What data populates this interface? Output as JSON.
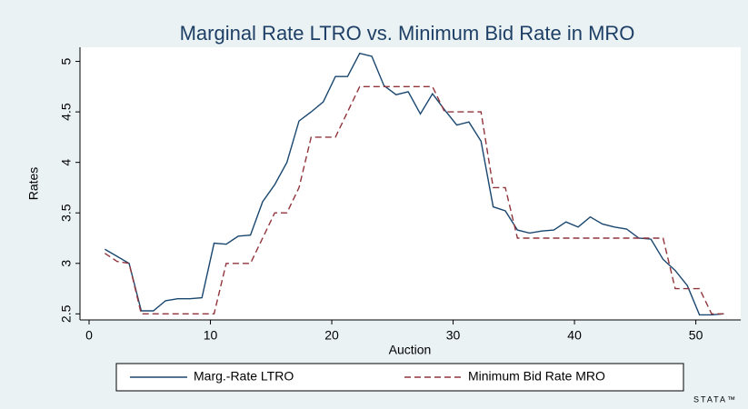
{
  "chart_data": {
    "type": "line",
    "title": "Marginal Rate LTRO vs. Minimum Bid Rate in MRO",
    "x_label": "Auction",
    "y_label": "Rates",
    "logo": "STATA™",
    "x": [
      1.3,
      2.3,
      3.3,
      4.3,
      5.3,
      6.3,
      7.3,
      8.3,
      9.3,
      10.3,
      11.3,
      12.3,
      13.3,
      14.3,
      15.3,
      16.3,
      17.3,
      18.3,
      19.3,
      20.3,
      21.3,
      22.3,
      23.3,
      24.3,
      25.3,
      26.3,
      27.3,
      28.3,
      29.3,
      30.3,
      31.3,
      32.3,
      33.3,
      34.3,
      35.3,
      36.3,
      37.3,
      38.3,
      39.3,
      40.3,
      41.3,
      42.3,
      43.3,
      44.3,
      45.3,
      46.3,
      47.3,
      48.3,
      49.3,
      50.3,
      51.3,
      52.3
    ],
    "series": [
      {
        "name": "Marg.-Rate LTRO",
        "color": "#1a476f",
        "dash": "solid",
        "values": [
          3.14,
          3.07,
          3.0,
          2.53,
          2.53,
          2.63,
          2.65,
          2.65,
          2.66,
          3.2,
          3.19,
          3.27,
          3.28,
          3.61,
          3.78,
          4.0,
          4.41,
          4.5,
          4.6,
          4.85,
          4.85,
          5.08,
          5.05,
          4.76,
          4.67,
          4.7,
          4.48,
          4.68,
          4.52,
          4.37,
          4.4,
          4.21,
          3.56,
          3.52,
          3.33,
          3.3,
          3.32,
          3.33,
          3.41,
          3.36,
          3.46,
          3.39,
          3.36,
          3.34,
          3.25,
          3.24,
          3.04,
          2.93,
          2.78,
          2.49,
          2.49,
          2.5
        ]
      },
      {
        "name": "Minimum Bid Rate MRO",
        "color": "#90353b",
        "dash": "dashed",
        "values": [
          3.1,
          3.02,
          3.0,
          2.5,
          2.5,
          2.5,
          2.5,
          2.5,
          2.5,
          2.5,
          3.0,
          3.0,
          3.0,
          3.25,
          3.5,
          3.5,
          3.75,
          4.25,
          4.25,
          4.25,
          4.5,
          4.75,
          4.75,
          4.75,
          4.75,
          4.75,
          4.75,
          4.75,
          4.5,
          4.5,
          4.5,
          4.5,
          3.75,
          3.75,
          3.25,
          3.25,
          3.25,
          3.25,
          3.25,
          3.25,
          3.25,
          3.25,
          3.25,
          3.25,
          3.25,
          3.25,
          3.25,
          2.75,
          2.75,
          2.75,
          2.5,
          2.5
        ]
      }
    ],
    "xlim": [
      -0.75,
      53.7
    ],
    "xticks": [
      0,
      10,
      20,
      30,
      40,
      50
    ],
    "ylim": [
      2.44,
      5.14
    ],
    "yticks": [
      2.5,
      3,
      3.5,
      4,
      4.5,
      5
    ],
    "grid": false,
    "legend": "bottom"
  }
}
